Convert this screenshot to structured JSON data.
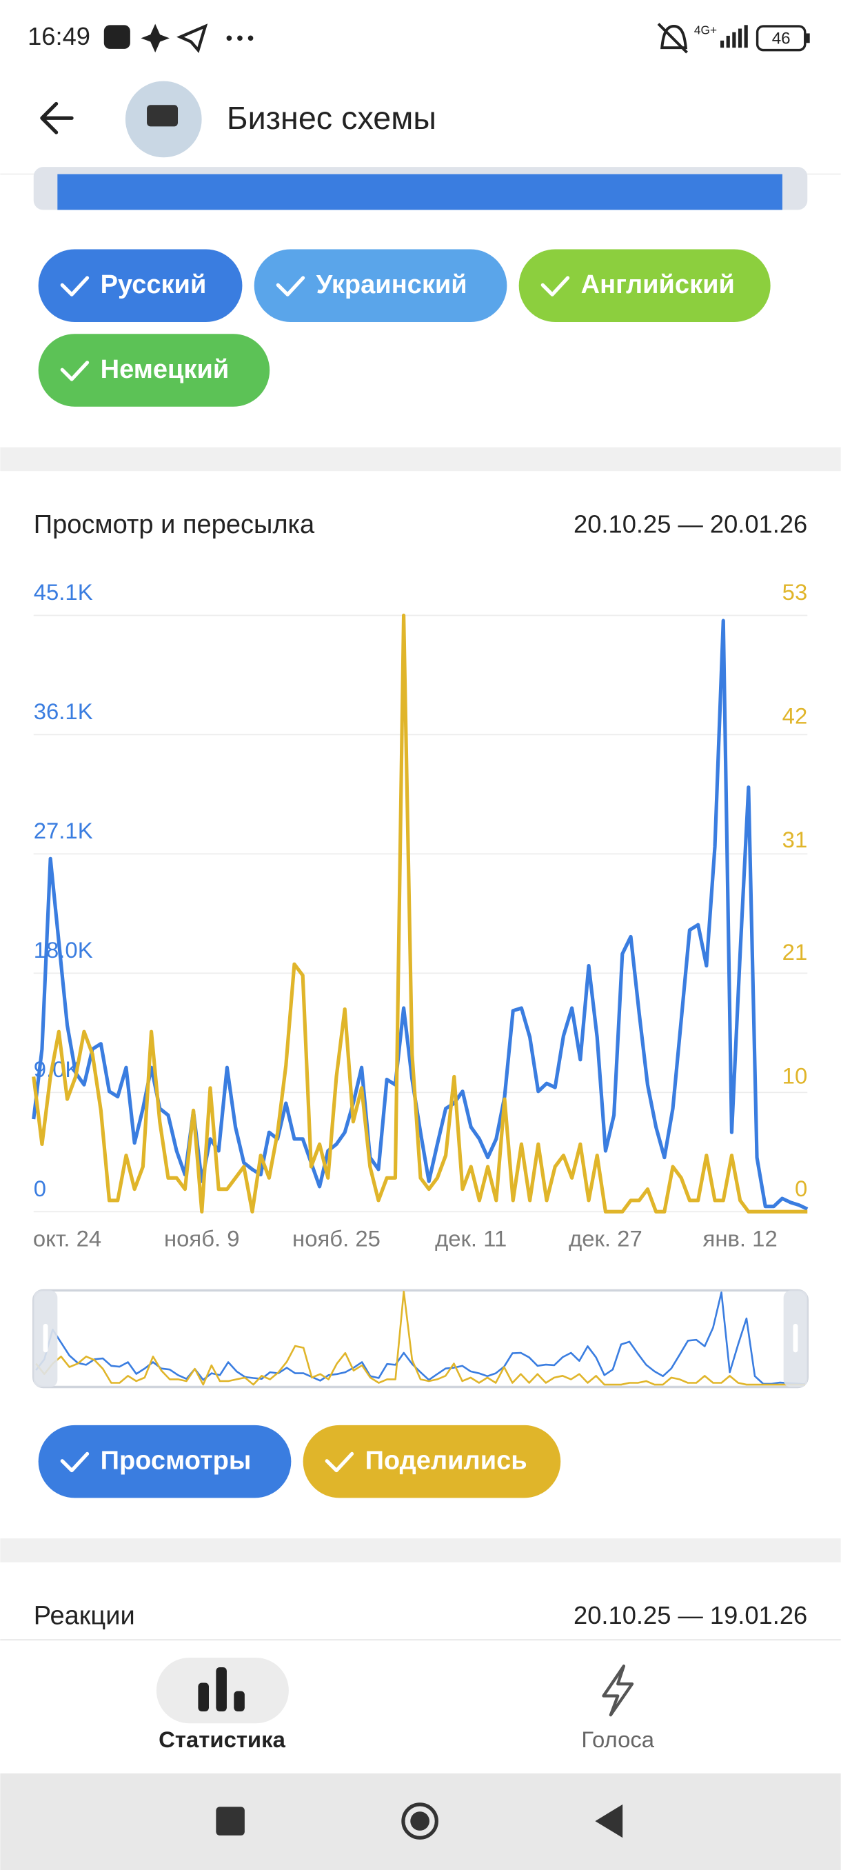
{
  "status_bar": {
    "time": "16:49",
    "network": "4G+",
    "battery": "46"
  },
  "header": {
    "title": "Бизнес схемы"
  },
  "language_filters": [
    "Русский",
    "Украинский",
    "Английский",
    "Немецкий"
  ],
  "chart_data": {
    "type": "line",
    "title": "Просмотр и пересылка",
    "subtitle": "20.10.25 — 20.01.26",
    "categories": [
      null,
      null,
      null,
      null,
      "окт. 24",
      null,
      null,
      null,
      null,
      null,
      null,
      null,
      null,
      null,
      null,
      null,
      null,
      null,
      null,
      null,
      "нояб. 9",
      null,
      null,
      null,
      null,
      null,
      null,
      null,
      null,
      null,
      null,
      null,
      null,
      null,
      null,
      null,
      "нояб. 25",
      null,
      null,
      null,
      null,
      null,
      null,
      null,
      null,
      null,
      null,
      null,
      null,
      null,
      null,
      null,
      "дек. 11",
      null,
      null,
      null,
      null,
      null,
      null,
      null,
      null,
      null,
      null,
      null,
      null,
      null,
      null,
      null,
      "дек. 27",
      null,
      null,
      null,
      null,
      null,
      null,
      null,
      null,
      null,
      null,
      null,
      null,
      null,
      null,
      null,
      "янв. 12",
      null,
      null,
      null,
      null,
      null,
      null,
      null,
      null
    ],
    "series": [
      {
        "name": "Просмотры",
        "color": "#3a7de0",
        "values": [
          7000,
          12300,
          26700,
          20400,
          14100,
          10500,
          9600,
          12300,
          12700,
          9100,
          8700,
          10900,
          5200,
          7800,
          10900,
          7800,
          7300,
          4600,
          2800,
          7600,
          2300,
          5500,
          4600,
          10900,
          6400,
          3700,
          3200,
          2800,
          6000,
          5500,
          8200,
          5500,
          5500,
          3700,
          1900,
          4600,
          5100,
          6000,
          8200,
          10900,
          4100,
          3200,
          10000,
          9600,
          15400,
          10000,
          6000,
          2300,
          5100,
          7800,
          8200,
          9100,
          6400,
          5500,
          4100,
          5500,
          8700,
          15200,
          15400,
          13200,
          9100,
          9700,
          9400,
          13300,
          15400,
          11500,
          18600,
          13200,
          4600,
          7300,
          19500,
          20800,
          15000,
          9600,
          6400,
          4100,
          7800,
          14500,
          21300,
          21700,
          18600,
          27600,
          44700,
          6000,
          19500,
          32100,
          4100,
          400,
          400,
          1000,
          700,
          500,
          200
        ]
      },
      {
        "name": "Поделились",
        "color": "#e0b52a",
        "axis": "y2",
        "values": [
          12,
          6,
          12,
          16,
          10,
          12,
          16,
          14,
          9,
          1,
          1,
          5,
          2,
          4,
          16,
          8,
          3,
          3,
          2,
          9,
          0,
          11,
          2,
          2,
          3,
          4,
          0,
          5,
          3,
          7,
          13,
          22,
          21,
          4,
          6,
          3,
          12,
          18,
          8,
          11,
          4,
          1,
          3,
          3,
          53,
          14,
          3,
          2,
          3,
          5,
          12,
          2,
          4,
          1,
          4,
          1,
          10,
          1,
          6,
          1,
          6,
          1,
          4,
          5,
          3,
          6,
          1,
          5,
          0,
          0,
          0,
          1,
          1,
          2,
          0,
          0,
          4,
          3,
          1,
          1,
          5,
          1,
          1,
          5,
          1,
          0,
          0,
          0,
          0,
          0,
          0,
          0,
          0
        ]
      }
    ],
    "ylim": [
      0,
      45100
    ],
    "yticks": [
      0,
      {
        "value": 9020,
        "label": "9.0K"
      },
      {
        "value": 18040,
        "label": "18.0K"
      },
      {
        "value": 27060,
        "label": "27.1K"
      },
      {
        "value": 36080,
        "label": "36.1K"
      },
      {
        "value": 45100,
        "label": "45.1K"
      }
    ],
    "y2lim": [
      0,
      53
    ],
    "y2ticks": [
      0,
      10,
      21,
      31,
      42,
      53
    ],
    "grid": true
  },
  "reactions": {
    "title": "Реакции",
    "date_range": "20.10.25 — 19.01.26"
  },
  "bottom_nav": {
    "items": [
      "Статистика",
      "Голоса"
    ]
  }
}
